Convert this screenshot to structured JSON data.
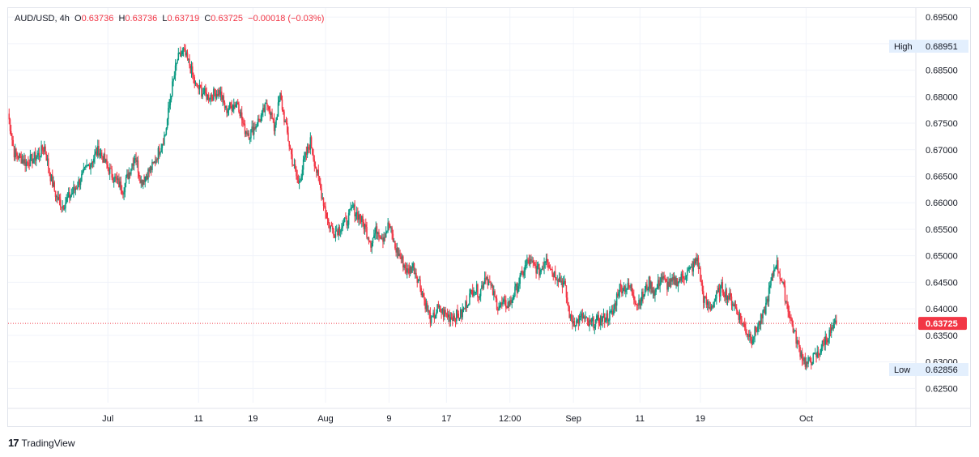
{
  "legend": {
    "symbol": "AUD/USD",
    "interval": "4h",
    "open_label": "O",
    "open": "0.63736",
    "high_label": "H",
    "high": "0.63736",
    "low_label": "L",
    "low": "0.63719",
    "close_label": "C",
    "close": "0.63725",
    "change": "−0.00018 (−0.03%)"
  },
  "brand": {
    "name": "TradingView"
  },
  "colors": {
    "up": "#089981",
    "down": "#f23645",
    "grid": "#f0f3fa",
    "price_line": "#f23645",
    "badge_bg": "#e3effd"
  },
  "chart_data": {
    "type": "candlestick",
    "title": "",
    "y_ticks": [
      "0.69500",
      "0.69000",
      "0.68500",
      "0.68000",
      "0.67500",
      "0.67000",
      "0.66500",
      "0.66000",
      "0.65500",
      "0.65000",
      "0.64500",
      "0.64000",
      "0.63500",
      "0.63000",
      "0.62500"
    ],
    "y_tick_values": [
      0.695,
      0.69,
      0.685,
      0.68,
      0.675,
      0.67,
      0.665,
      0.66,
      0.655,
      0.65,
      0.645,
      0.64,
      0.635,
      0.63,
      0.625
    ],
    "ylim": [
      0.6223,
      0.6967
    ],
    "x_ticks": [
      "Jul",
      "11",
      "19",
      "Aug",
      "9",
      "17",
      "12:00",
      "Sep",
      "11",
      "19",
      "Oct"
    ],
    "x_tick_positions": [
      16.5,
      31.5,
      40.5,
      52.5,
      63,
      72.5,
      83,
      93.5,
      104.5,
      114.5,
      132
    ],
    "x_range": [
      0,
      150
    ],
    "markers": {
      "high": {
        "label": "High",
        "value": "0.68951"
      },
      "low": {
        "label": "Low",
        "value": "0.62856"
      },
      "last": {
        "value": "0.63725"
      }
    },
    "anchors": [
      [
        0,
        0.6768
      ],
      [
        1,
        0.6695
      ],
      [
        3,
        0.6675
      ],
      [
        5,
        0.669
      ],
      [
        6,
        0.6705
      ],
      [
        7,
        0.665
      ],
      [
        8,
        0.661
      ],
      [
        9,
        0.6595
      ],
      [
        11,
        0.6625
      ],
      [
        13,
        0.6665
      ],
      [
        15,
        0.67
      ],
      [
        17,
        0.6655
      ],
      [
        19,
        0.6625
      ],
      [
        21,
        0.669
      ],
      [
        22,
        0.664
      ],
      [
        24,
        0.667
      ],
      [
        26,
        0.673
      ],
      [
        27,
        0.681
      ],
      [
        28,
        0.687
      ],
      [
        29,
        0.6885
      ],
      [
        30,
        0.686
      ],
      [
        31,
        0.682
      ],
      [
        33,
        0.68
      ],
      [
        35,
        0.681
      ],
      [
        36,
        0.6775
      ],
      [
        38,
        0.679
      ],
      [
        39,
        0.674
      ],
      [
        40,
        0.673
      ],
      [
        42,
        0.6765
      ],
      [
        43,
        0.679
      ],
      [
        44,
        0.674
      ],
      [
        45,
        0.68
      ],
      [
        46,
        0.674
      ],
      [
        47,
        0.668
      ],
      [
        48,
        0.6635
      ],
      [
        49,
        0.668
      ],
      [
        50,
        0.6715
      ],
      [
        51,
        0.666
      ],
      [
        52,
        0.661
      ],
      [
        53,
        0.656
      ],
      [
        54,
        0.6545
      ],
      [
        56,
        0.6565
      ],
      [
        57,
        0.659
      ],
      [
        58,
        0.6575
      ],
      [
        59,
        0.6555
      ],
      [
        60,
        0.6525
      ],
      [
        61,
        0.655
      ],
      [
        62,
        0.6535
      ],
      [
        63,
        0.656
      ],
      [
        64,
        0.6515
      ],
      [
        65,
        0.6495
      ],
      [
        66,
        0.647
      ],
      [
        67,
        0.648
      ],
      [
        68,
        0.645
      ],
      [
        69,
        0.641
      ],
      [
        70,
        0.6375
      ],
      [
        71,
        0.64
      ],
      [
        73,
        0.6385
      ],
      [
        75,
        0.639
      ],
      [
        77,
        0.644
      ],
      [
        78,
        0.643
      ],
      [
        79,
        0.6465
      ],
      [
        81,
        0.6405
      ],
      [
        83,
        0.641
      ],
      [
        85,
        0.6465
      ],
      [
        86,
        0.649
      ],
      [
        88,
        0.647
      ],
      [
        89,
        0.65
      ],
      [
        90,
        0.647
      ],
      [
        91,
        0.646
      ],
      [
        92,
        0.6445
      ],
      [
        93,
        0.638
      ],
      [
        94,
        0.6375
      ],
      [
        95,
        0.6385
      ],
      [
        96,
        0.637
      ],
      [
        98,
        0.638
      ],
      [
        100,
        0.639
      ],
      [
        101,
        0.644
      ],
      [
        103,
        0.644
      ],
      [
        104,
        0.641
      ],
      [
        105,
        0.6425
      ],
      [
        106,
        0.645
      ],
      [
        107,
        0.643
      ],
      [
        108,
        0.646
      ],
      [
        109,
        0.6445
      ],
      [
        111,
        0.6455
      ],
      [
        113,
        0.6475
      ],
      [
        114,
        0.6495
      ],
      [
        115,
        0.642
      ],
      [
        116,
        0.64
      ],
      [
        118,
        0.644
      ],
      [
        120,
        0.641
      ],
      [
        121,
        0.6385
      ],
      [
        122,
        0.636
      ],
      [
        123,
        0.6345
      ],
      [
        125,
        0.639
      ],
      [
        126,
        0.644
      ],
      [
        127,
        0.649
      ],
      [
        128,
        0.645
      ],
      [
        129,
        0.64
      ],
      [
        130,
        0.6355
      ],
      [
        131,
        0.632
      ],
      [
        132,
        0.6295
      ],
      [
        134,
        0.6315
      ],
      [
        135,
        0.634
      ],
      [
        136,
        0.6355
      ],
      [
        137,
        0.63725
      ]
    ]
  }
}
